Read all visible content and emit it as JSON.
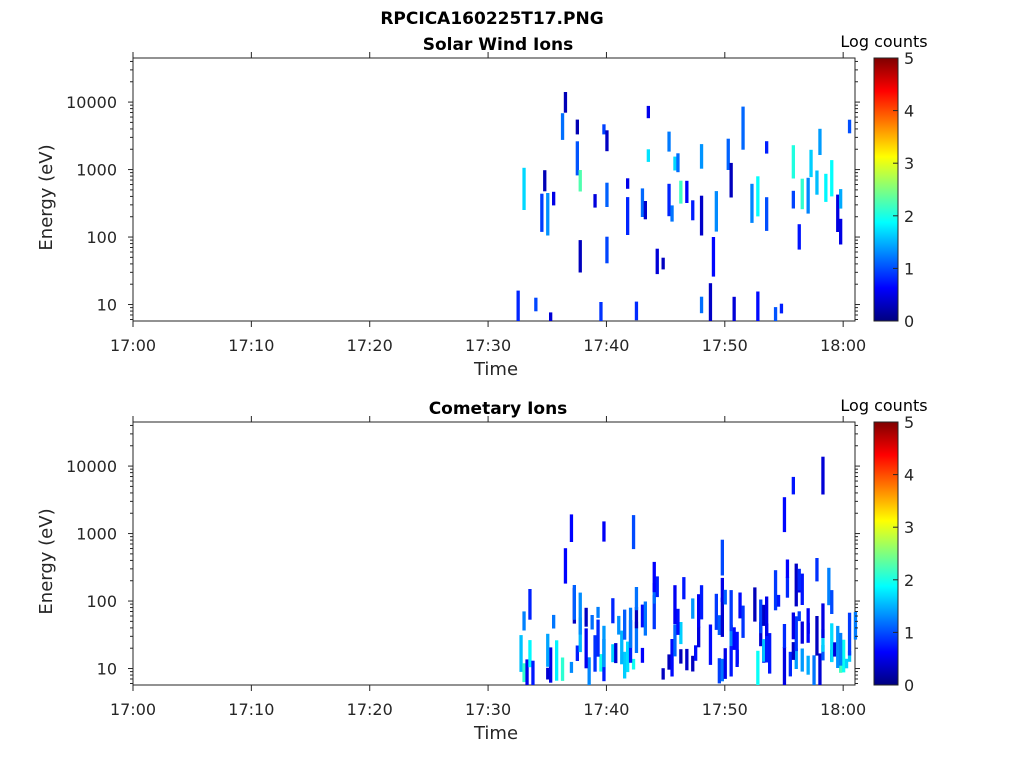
{
  "figure_title": "RPCICA160225T17.PNG",
  "colors": {
    "colormap": [
      "#00007f",
      "#0000ff",
      "#007fff",
      "#00ffff",
      "#7fff7f",
      "#ffff00",
      "#ff7f00",
      "#ff0000",
      "#7f0000"
    ],
    "axis": "#262626",
    "background": "#ffffff"
  },
  "chart_data": [
    {
      "type": "heatmap",
      "title": "Solar Wind Ions",
      "xlabel": "Time",
      "ylabel": "Energy (eV)",
      "x_ticks": [
        "17:00",
        "17:10",
        "17:20",
        "17:30",
        "17:40",
        "17:50",
        "18:00"
      ],
      "x_range_min": [
        0,
        61
      ],
      "y_scale": "log",
      "y_range_ev": [
        5.7,
        45000
      ],
      "y_ticks": [
        "10",
        "100",
        "1000",
        "10000"
      ],
      "colorbar": {
        "label": "Log counts",
        "range": [
          0,
          5
        ],
        "ticks": [
          "0",
          "1",
          "2",
          "3",
          "4",
          "5"
        ]
      },
      "data_start_min": 32.4,
      "data_end_min": 61,
      "bands": [
        {
          "energy_ev": 1500,
          "t_start": 32.4,
          "t_end": 61,
          "density": 0.12,
          "max_log": 2.4
        },
        {
          "energy_ev": 500,
          "t_start": 32.4,
          "t_end": 61,
          "density": 0.16,
          "max_log": 2.3
        },
        {
          "energy_ev": 300,
          "t_start": 32.4,
          "t_end": 61,
          "density": 0.09,
          "max_log": 1.6
        },
        {
          "energy_ev": 3000,
          "t_start": 32.4,
          "t_end": 61,
          "density": 0.05,
          "max_log": 1.4
        },
        {
          "energy_ev": 150,
          "t_start": 32.4,
          "t_end": 61,
          "density": 0.03,
          "max_log": 1.2
        },
        {
          "energy_ev": 60,
          "t_start": 32.4,
          "t_end": 61,
          "density": 0.03,
          "max_log": 1.1
        },
        {
          "energy_ev": 8,
          "t_start": 32.4,
          "t_end": 61,
          "density": 0.07,
          "max_log": 1.2
        },
        {
          "energy_ev": 7000,
          "t_start": 32.4,
          "t_end": 61,
          "density": 0.02,
          "max_log": 1.0
        }
      ]
    },
    {
      "type": "heatmap",
      "title": "Cometary Ions",
      "xlabel": "Time",
      "ylabel": "Energy (eV)",
      "x_ticks": [
        "17:00",
        "17:10",
        "17:20",
        "17:30",
        "17:40",
        "17:50",
        "18:00"
      ],
      "x_range_min": [
        0,
        61
      ],
      "y_scale": "log",
      "y_range_ev": [
        5.7,
        45000
      ],
      "y_ticks": [
        "10",
        "100",
        "1000",
        "10000"
      ],
      "colorbar": {
        "label": "Log counts",
        "range": [
          0,
          5
        ],
        "ticks": [
          "0",
          "1",
          "2",
          "3",
          "4",
          "5"
        ]
      },
      "data_start_min": 32.4,
      "data_end_min": 61,
      "bands": [
        {
          "energy_ev": 12,
          "t_start": 32.4,
          "t_end": 61,
          "density": 0.38,
          "max_log": 2.2
        },
        {
          "energy_ev": 25,
          "t_start": 32.4,
          "t_end": 61,
          "density": 0.3,
          "max_log": 1.8
        },
        {
          "energy_ev": 60,
          "t_start": 32.4,
          "t_end": 61,
          "density": 0.22,
          "max_log": 1.4
        },
        {
          "energy_ev": 130,
          "t_start": 32.4,
          "t_end": 61,
          "density": 0.13,
          "max_log": 1.3
        },
        {
          "energy_ev": 300,
          "t_start": 32.4,
          "t_end": 61,
          "density": 0.06,
          "max_log": 1.2
        },
        {
          "energy_ev": 1500,
          "t_start": 32.4,
          "t_end": 61,
          "density": 0.02,
          "max_log": 1.0
        },
        {
          "energy_ev": 6000,
          "t_start": 32.4,
          "t_end": 61,
          "density": 0.01,
          "max_log": 0.8
        }
      ]
    }
  ]
}
